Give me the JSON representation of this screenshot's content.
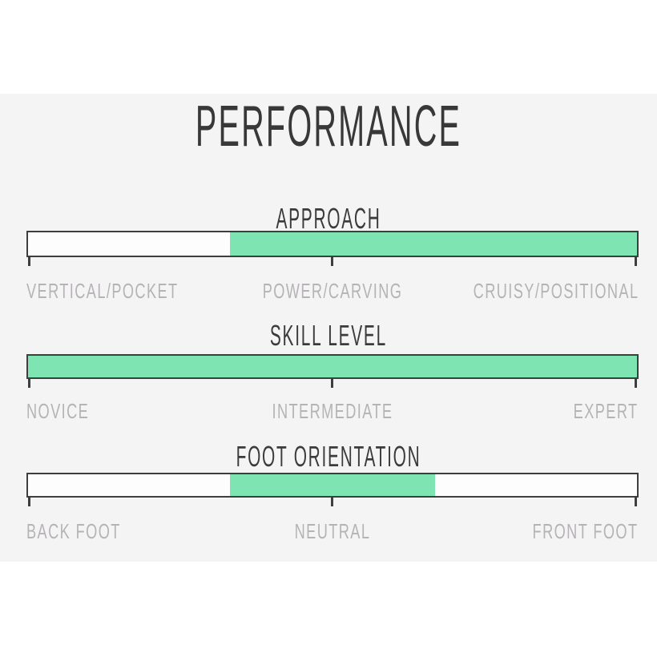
{
  "title": "PERFORMANCE",
  "colors": {
    "background": "#ffffff",
    "panel_background": "#f5f4f5",
    "bar_fill_green": "#7de4b2",
    "bar_background": "#fdfdfd",
    "bar_border": "#3e3e3e",
    "title_text": "#383838",
    "heading_text": "#3b3b3b",
    "label_text": "#b5b3b5"
  },
  "scales": [
    {
      "heading": "APPROACH",
      "fill_start_pct": 33.2,
      "fill_end_pct": 100,
      "labels": {
        "left": "VERTICAL/POCKET",
        "center": "POWER/CARVING",
        "right": "CRUISY/POSITIONAL"
      }
    },
    {
      "heading": "SKILL LEVEL",
      "fill_start_pct": 0,
      "fill_end_pct": 100,
      "labels": {
        "left": "NOVICE",
        "center": "INTERMEDIATE",
        "right": "EXPERT"
      }
    },
    {
      "heading": "FOOT ORIENTATION",
      "fill_start_pct": 33.2,
      "fill_end_pct": 66.8,
      "labels": {
        "left": "BACK FOOT",
        "center": "NEUTRAL",
        "right": "FRONT FOOT"
      }
    }
  ],
  "chart_data": [
    {
      "type": "bar",
      "title": "APPROACH",
      "orientation": "horizontal",
      "axis_range_pct": [
        0,
        100
      ],
      "axis_tick_labels": [
        "VERTICAL/POCKET",
        "POWER/CARVING",
        "CRUISY/POSITIONAL"
      ],
      "tick_positions_pct": [
        0,
        50,
        100
      ],
      "filled_range_pct": [
        33.2,
        100
      ],
      "fill_color": "#7de4b2",
      "legend": "off",
      "grid": "off"
    },
    {
      "type": "bar",
      "title": "SKILL LEVEL",
      "orientation": "horizontal",
      "axis_range_pct": [
        0,
        100
      ],
      "axis_tick_labels": [
        "NOVICE",
        "INTERMEDIATE",
        "EXPERT"
      ],
      "tick_positions_pct": [
        0,
        50,
        100
      ],
      "filled_range_pct": [
        0,
        100
      ],
      "fill_color": "#7de4b2",
      "legend": "off",
      "grid": "off"
    },
    {
      "type": "bar",
      "title": "FOOT ORIENTATION",
      "orientation": "horizontal",
      "axis_range_pct": [
        0,
        100
      ],
      "axis_tick_labels": [
        "BACK FOOT",
        "NEUTRAL",
        "FRONT FOOT"
      ],
      "tick_positions_pct": [
        0,
        50,
        100
      ],
      "filled_range_pct": [
        33.2,
        66.8
      ],
      "fill_color": "#7de4b2",
      "legend": "off",
      "grid": "off"
    }
  ]
}
